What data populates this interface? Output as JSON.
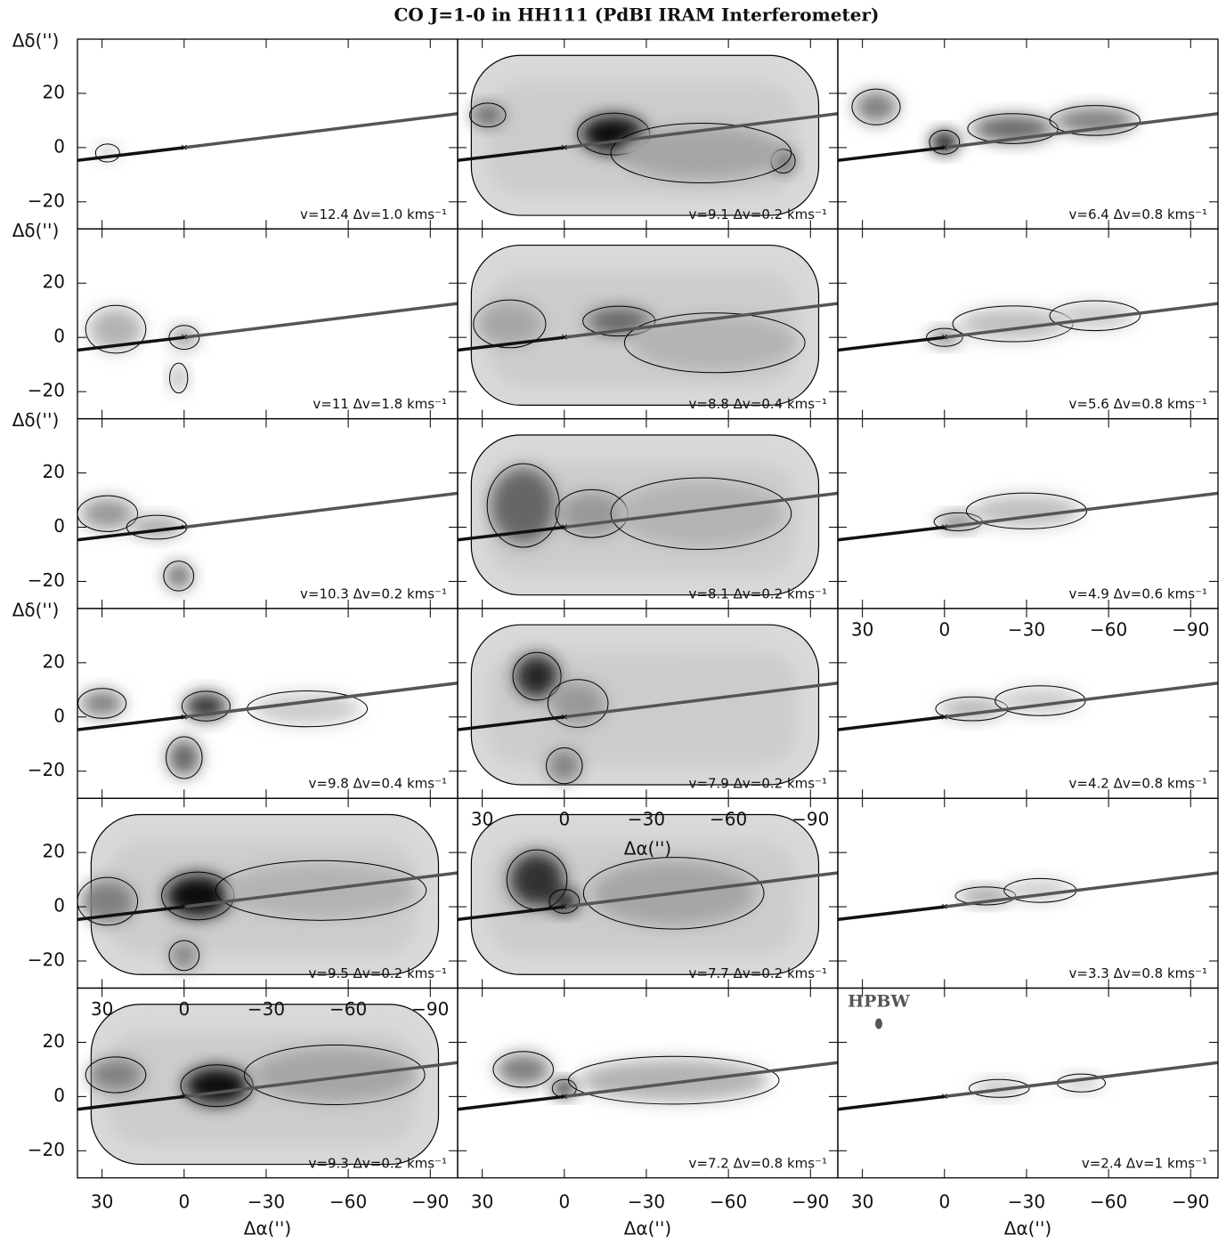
{
  "chart_data": {
    "type": "channel-map",
    "title": "CO J=1-0 in HH111 (PdBI IRAM Interferometer)",
    "xlabel": "Δα('')",
    "ylabel": "Δδ('')",
    "xlim": [
      39,
      -100
    ],
    "ylim": [
      -30,
      40
    ],
    "xticks": [
      30,
      0,
      {
        "value": -30,
        "label": "−30"
      },
      {
        "value": -60,
        "label": "−60"
      },
      {
        "value": -90,
        "label": "−90"
      }
    ],
    "yticks": [
      20,
      0,
      {
        "value": -20,
        "label": "−20"
      }
    ],
    "jet": [
      {
        "color": "#111111",
        "x": [
          39,
          0
        ],
        "y": [
          -4.7,
          0
        ]
      },
      {
        "color": "#555555",
        "x": [
          0,
          -100
        ],
        "y": [
          0,
          12.5
        ]
      }
    ],
    "beam_label": "HPBW",
    "panels": [
      {
        "label": "v=12.4  Δv=1.0 kms⁻¹",
        "show_ylabel": true
      },
      {
        "label": "v=11  Δv=1.8 kms⁻¹",
        "show_ylabel": true
      },
      {
        "label": "v=10.3  Δv=0.2 kms⁻¹",
        "show_ylabel": true
      },
      {
        "label": "v=9.8  Δv=0.4 kms⁻¹",
        "show_ylabel": true
      },
      {
        "label": "v=9.5  Δv=0.2 kms⁻¹",
        "show_ylabel": false
      },
      {
        "label": "v=9.3  Δv=0.2 kms⁻¹",
        "show_ylabel": false,
        "ghost_xticks": true
      },
      {
        "label": "v=9.1  Δv=0.2 kms⁻¹"
      },
      {
        "label": "v=8.8  Δv=0.4 kms⁻¹"
      },
      {
        "label": "v=8.1  Δv=0.2 kms⁻¹"
      },
      {
        "label": "v=7.9  Δv=0.2 kms⁻¹"
      },
      {
        "label": "v=7.7  Δv=0.2 kms⁻¹",
        "ghost_xticks": true,
        "ghost_xlabel": true
      },
      {
        "label": "v=7.2  Δv=0.8 kms⁻¹"
      },
      {
        "label": "v=6.4  Δv=0.8 kms⁻¹"
      },
      {
        "label": "v=5.6  Δv=0.8 kms⁻¹"
      },
      {
        "label": "v=4.9  Δv=0.6 kms⁻¹"
      },
      {
        "label": "v=4.2  Δv=0.8 kms⁻¹",
        "ghost_xticks": true
      },
      {
        "label": "v=3.3  Δv=0.8 kms⁻¹"
      },
      {
        "label": "v=2.4  Δv=1 kms⁻¹",
        "beam": true
      }
    ]
  }
}
